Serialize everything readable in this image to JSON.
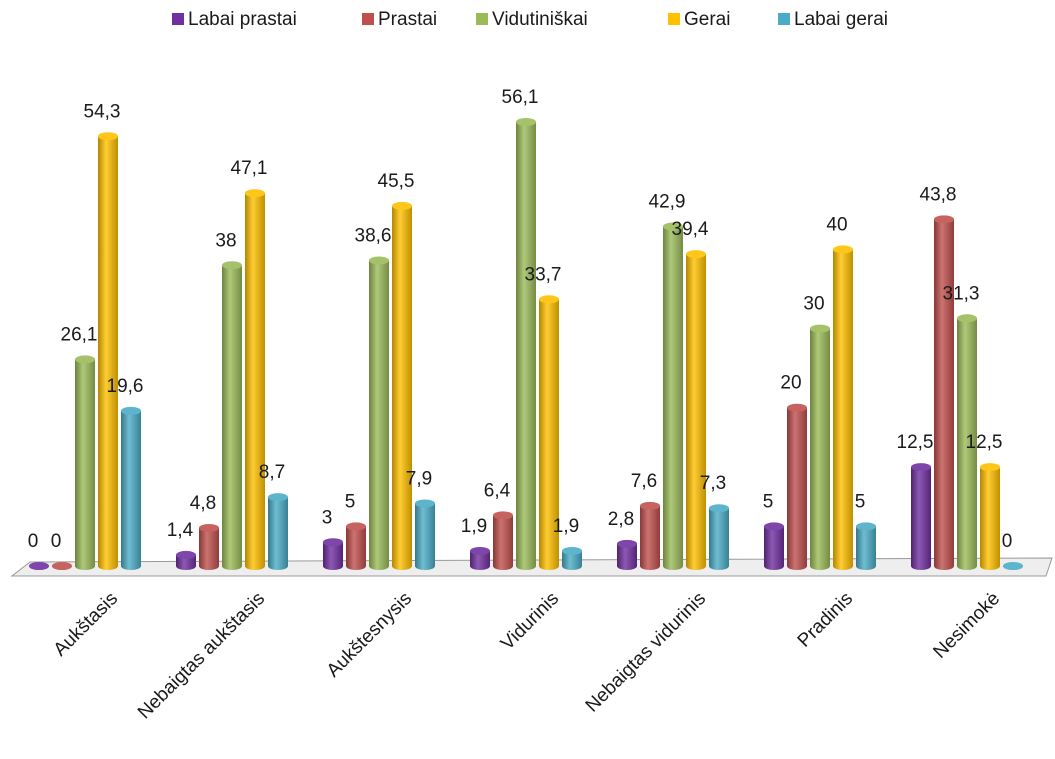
{
  "chart_data": {
    "type": "bar",
    "categories": [
      "Aukštasis",
      "Nebaigtas aukštasis",
      "Aukštesnysis",
      "Vidurinis",
      "Nebaigtas vidurinis",
      "Pradinis",
      "Nesimokė"
    ],
    "series": [
      {
        "name": "Labai prastai",
        "color": "#7030a0",
        "values": [
          0,
          1.4,
          3,
          1.9,
          2.8,
          5,
          12.5
        ],
        "value_labels": [
          "0",
          "1,4",
          "3",
          "1,9",
          "2,8",
          "5",
          "12,5"
        ]
      },
      {
        "name": "Prastai",
        "color": "#c0504d",
        "values": [
          0,
          4.8,
          5,
          6.4,
          7.6,
          20,
          43.8
        ],
        "value_labels": [
          "0",
          "4,8",
          "5",
          "6,4",
          "7,6",
          "20",
          "43,8"
        ]
      },
      {
        "name": "Vidutiniškai",
        "color": "#9bbb59",
        "values": [
          26.1,
          38,
          38.6,
          56.1,
          42.9,
          30,
          31.3
        ],
        "value_labels": [
          "26,1",
          "38",
          "38,6",
          "56,1",
          "42,9",
          "30",
          "31,3"
        ]
      },
      {
        "name": "Gerai",
        "color": "#ffc000",
        "values": [
          54.3,
          47.1,
          45.5,
          33.7,
          39.4,
          40,
          12.5
        ],
        "value_labels": [
          "54,3",
          "47,1",
          "45,5",
          "33,7",
          "39,4",
          "40",
          "12,5"
        ]
      },
      {
        "name": "Labai gerai",
        "color": "#4bacc6",
        "values": [
          19.6,
          8.7,
          7.9,
          1.9,
          7.3,
          5,
          0
        ],
        "value_labels": [
          "19,6",
          "8,7",
          "7,9",
          "1,9",
          "7,3",
          "5",
          "0"
        ]
      }
    ],
    "legend": "top"
  }
}
